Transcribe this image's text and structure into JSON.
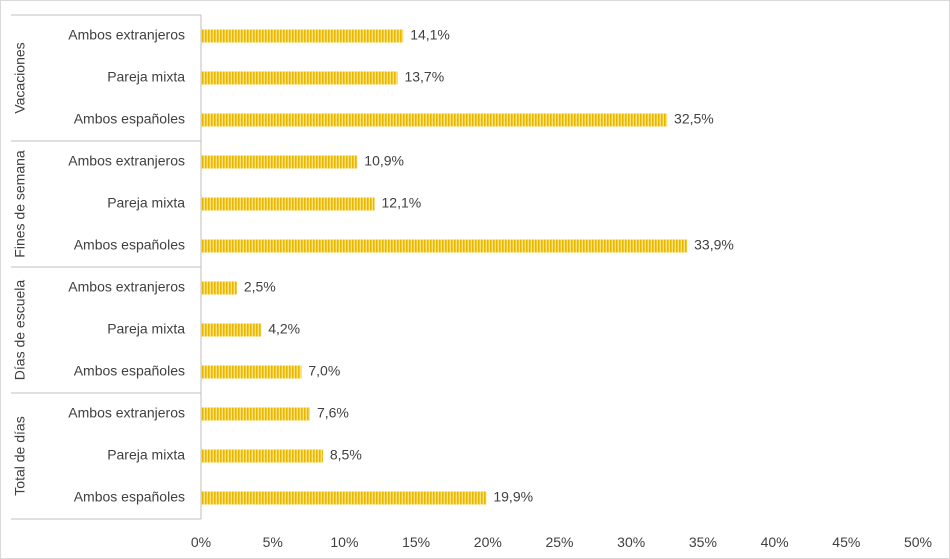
{
  "chart_data": {
    "type": "bar",
    "orientation": "horizontal",
    "xlim": [
      0,
      50
    ],
    "x_ticks": [
      "0%",
      "5%",
      "10%",
      "15%",
      "20%",
      "25%",
      "30%",
      "35%",
      "40%",
      "45%",
      "50%"
    ],
    "grid": false,
    "legend": "none",
    "bar_color": "#f2c200",
    "bar_pattern": "vertical-stripes",
    "groups": [
      {
        "name": "Vacaciones",
        "categories": [
          "Ambos extranjeros",
          "Pareja mixta",
          "Ambos españoles"
        ],
        "values": [
          14.1,
          13.7,
          32.5
        ],
        "labels": [
          "14,1%",
          "13,7%",
          "32,5%"
        ]
      },
      {
        "name": "Fines de semana",
        "categories": [
          "Ambos extranjeros",
          "Pareja mixta",
          "Ambos españoles"
        ],
        "values": [
          10.9,
          12.1,
          33.9
        ],
        "labels": [
          "10,9%",
          "12,1%",
          "33,9%"
        ]
      },
      {
        "name": "Días de escuela",
        "categories": [
          "Ambos extranjeros",
          "Pareja mixta",
          "Ambos españoles"
        ],
        "values": [
          2.5,
          4.2,
          7.0
        ],
        "labels": [
          "2,5%",
          "4,2%",
          "7,0%"
        ]
      },
      {
        "name": "Total de días",
        "categories": [
          "Ambos extranjeros",
          "Pareja mixta",
          "Ambos españoles"
        ],
        "values": [
          7.6,
          8.5,
          19.9
        ],
        "labels": [
          "7,6%",
          "8,5%",
          "19,9%"
        ]
      }
    ]
  }
}
